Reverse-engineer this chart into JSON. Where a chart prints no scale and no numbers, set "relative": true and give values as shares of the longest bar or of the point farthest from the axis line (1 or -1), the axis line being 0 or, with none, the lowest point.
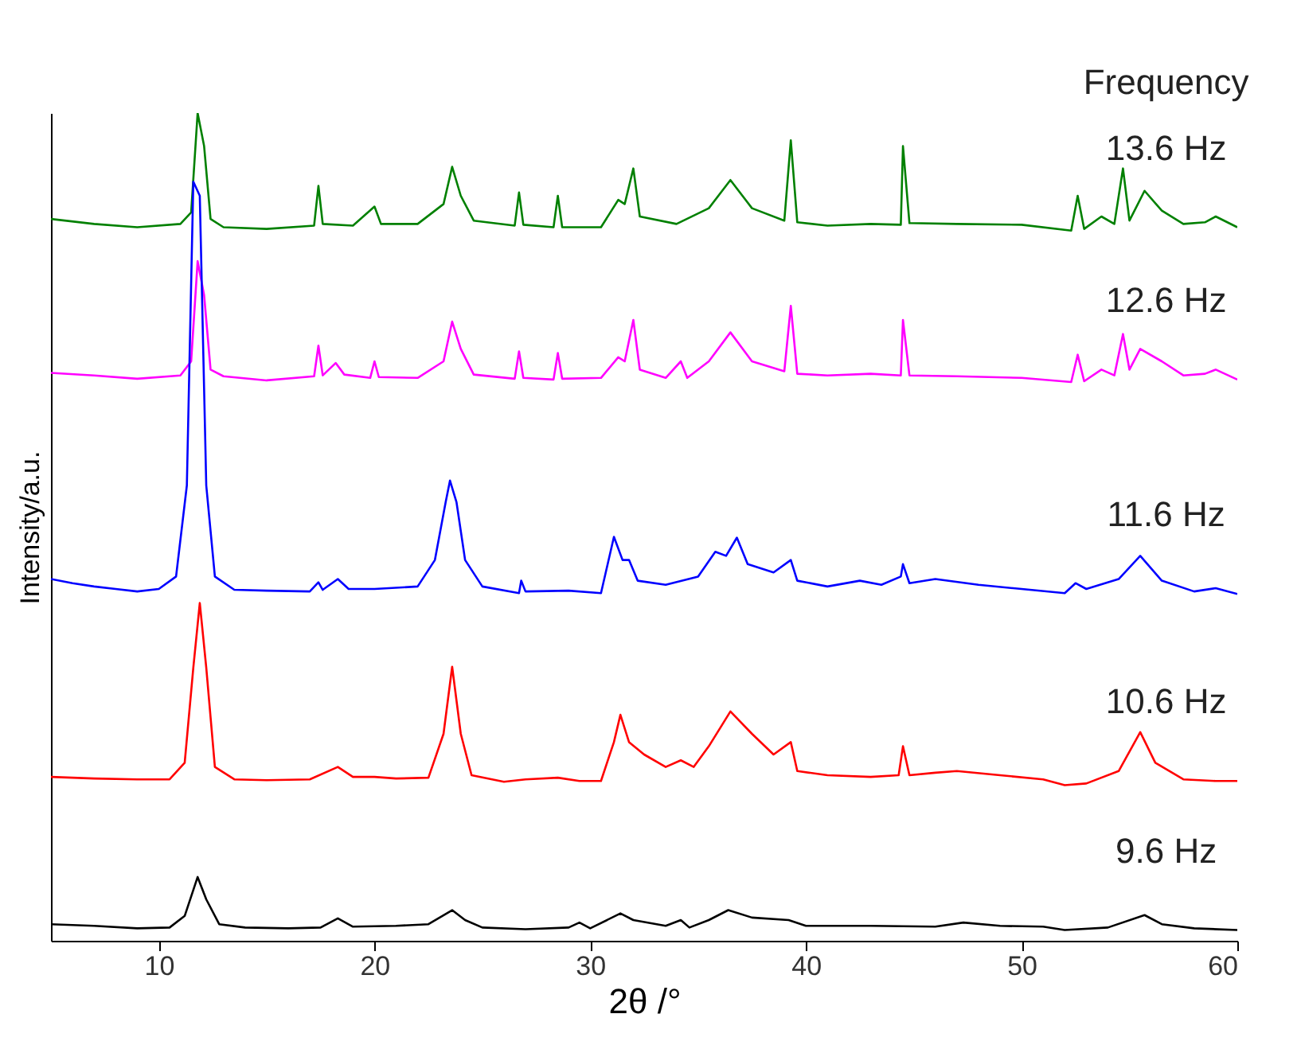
{
  "chart_data": {
    "type": "line",
    "relative": true,
    "xlabel": "2θ /°",
    "ylabel": "Intensity/a.u.",
    "legend_title": "Frequency",
    "legend": false,
    "grid": false,
    "xlim": [
      5,
      60
    ],
    "xticks": [
      10,
      20,
      30,
      40,
      50,
      60
    ],
    "series": [
      {
        "name": "13.6 Hz",
        "color": "#008000",
        "x": [
          5,
          7,
          9,
          11,
          11.5,
          11.8,
          12.1,
          12.4,
          13,
          15,
          17.2,
          17.4,
          17.6,
          19,
          20,
          20.3,
          22,
          23.2,
          23.6,
          24,
          24.6,
          26.5,
          26.7,
          26.9,
          28.3,
          28.5,
          28.7,
          30.5,
          31.3,
          31.6,
          32,
          32.3,
          34,
          35.5,
          36.5,
          37.5,
          39,
          39.3,
          39.6,
          41,
          43,
          44.4,
          44.5,
          44.8,
          47,
          50,
          52.3,
          52.6,
          52.9,
          53.7,
          54.3,
          54.7,
          55,
          55.7,
          56.5,
          57.5,
          58.5,
          59,
          60
        ],
        "values": [
          0.872,
          0.866,
          0.862,
          0.866,
          0.88,
          1.0,
          0.96,
          0.872,
          0.862,
          0.86,
          0.864,
          0.912,
          0.866,
          0.864,
          0.887,
          0.866,
          0.866,
          0.89,
          0.935,
          0.9,
          0.87,
          0.864,
          0.904,
          0.865,
          0.862,
          0.9,
          0.862,
          0.862,
          0.895,
          0.89,
          0.933,
          0.875,
          0.866,
          0.885,
          0.919,
          0.885,
          0.87,
          0.967,
          0.868,
          0.864,
          0.866,
          0.865,
          0.96,
          0.867,
          0.866,
          0.865,
          0.858,
          0.9,
          0.86,
          0.875,
          0.866,
          0.933,
          0.87,
          0.906,
          0.882,
          0.866,
          0.868,
          0.875,
          0.862
        ]
      },
      {
        "name": "12.6 Hz",
        "color": "#ff00ff",
        "x": [
          5,
          7,
          9,
          11,
          11.5,
          11.8,
          12.1,
          12.4,
          13,
          15,
          17.2,
          17.4,
          17.6,
          18.2,
          18.6,
          19.8,
          20,
          20.2,
          22,
          23.2,
          23.6,
          24,
          24.6,
          26.5,
          26.7,
          26.9,
          28.3,
          28.5,
          28.7,
          30.5,
          31.3,
          31.6,
          32,
          32.3,
          33.5,
          34.2,
          34.5,
          35.5,
          36.5,
          37.5,
          39,
          39.3,
          39.6,
          41,
          43,
          44.4,
          44.5,
          44.8,
          47,
          50,
          52.3,
          52.6,
          52.9,
          53.7,
          54.3,
          54.7,
          55,
          55.5,
          56.5,
          57.5,
          58.5,
          59,
          60
        ],
        "values": [
          0.686,
          0.683,
          0.679,
          0.683,
          0.7,
          0.821,
          0.78,
          0.69,
          0.682,
          0.677,
          0.682,
          0.719,
          0.683,
          0.698,
          0.684,
          0.68,
          0.7,
          0.681,
          0.68,
          0.7,
          0.748,
          0.715,
          0.684,
          0.679,
          0.712,
          0.68,
          0.678,
          0.71,
          0.679,
          0.68,
          0.705,
          0.7,
          0.75,
          0.69,
          0.68,
          0.7,
          0.68,
          0.7,
          0.735,
          0.7,
          0.688,
          0.767,
          0.685,
          0.683,
          0.685,
          0.683,
          0.75,
          0.683,
          0.682,
          0.68,
          0.675,
          0.708,
          0.676,
          0.69,
          0.683,
          0.733,
          0.69,
          0.715,
          0.7,
          0.683,
          0.685,
          0.69,
          0.678
        ]
      },
      {
        "name": "11.6 Hz",
        "color": "#0000ff",
        "x": [
          5,
          6,
          7,
          8,
          9,
          10,
          10.8,
          11.3,
          11.6,
          11.9,
          12.2,
          12.6,
          13.5,
          15,
          17,
          17.4,
          17.6,
          18.3,
          18.8,
          20,
          22,
          22.8,
          23.3,
          23.5,
          23.8,
          24.2,
          25,
          26.7,
          26.8,
          27,
          29,
          30.5,
          31.1,
          31.5,
          31.8,
          32.2,
          33.5,
          35,
          35.8,
          36.3,
          36.8,
          37.3,
          38.5,
          39.3,
          39.6,
          41,
          42.5,
          43.5,
          44.4,
          44.5,
          44.8,
          46,
          48,
          50,
          52,
          52.5,
          53,
          54.5,
          55.5,
          56.5,
          58,
          59,
          60
        ],
        "values": [
          0.437,
          0.432,
          0.428,
          0.425,
          0.422,
          0.425,
          0.44,
          0.55,
          0.917,
          0.9,
          0.55,
          0.44,
          0.424,
          0.423,
          0.422,
          0.433,
          0.424,
          0.437,
          0.425,
          0.425,
          0.428,
          0.46,
          0.53,
          0.556,
          0.53,
          0.46,
          0.428,
          0.42,
          0.435,
          0.422,
          0.423,
          0.42,
          0.488,
          0.46,
          0.46,
          0.435,
          0.43,
          0.44,
          0.47,
          0.465,
          0.487,
          0.455,
          0.445,
          0.46,
          0.435,
          0.428,
          0.435,
          0.43,
          0.44,
          0.455,
          0.432,
          0.437,
          0.43,
          0.425,
          0.42,
          0.432,
          0.425,
          0.437,
          0.465,
          0.435,
          0.422,
          0.426,
          0.419
        ]
      },
      {
        "name": "10.6 Hz",
        "color": "#ff0000",
        "x": [
          5,
          7,
          9,
          10.5,
          11.2,
          11.6,
          11.9,
          12.2,
          12.6,
          13.5,
          15,
          17,
          18.3,
          19,
          20,
          21,
          22.5,
          23.2,
          23.6,
          24,
          24.5,
          26,
          27,
          28.5,
          29.5,
          30.5,
          31.1,
          31.4,
          31.8,
          32.5,
          33.5,
          34.2,
          34.8,
          35.5,
          36.5,
          37.5,
          38.5,
          39.3,
          39.6,
          41,
          43,
          44.3,
          44.5,
          44.8,
          46,
          47,
          49,
          51,
          52,
          53,
          54.5,
          55.5,
          56.2,
          57.5,
          59,
          60
        ],
        "values": [
          0.198,
          0.196,
          0.195,
          0.195,
          0.215,
          0.33,
          0.408,
          0.33,
          0.21,
          0.195,
          0.194,
          0.195,
          0.21,
          0.198,
          0.198,
          0.196,
          0.197,
          0.25,
          0.331,
          0.25,
          0.2,
          0.192,
          0.195,
          0.197,
          0.193,
          0.193,
          0.24,
          0.273,
          0.24,
          0.225,
          0.21,
          0.218,
          0.21,
          0.235,
          0.277,
          0.25,
          0.225,
          0.24,
          0.205,
          0.2,
          0.198,
          0.2,
          0.235,
          0.2,
          0.203,
          0.205,
          0.2,
          0.195,
          0.188,
          0.19,
          0.205,
          0.252,
          0.215,
          0.195,
          0.193,
          0.193
        ]
      },
      {
        "name": "9.6 Hz",
        "color": "#000000",
        "x": [
          5,
          7,
          9,
          10.5,
          11.2,
          11.8,
          12.2,
          12.8,
          14,
          16,
          17.5,
          18.3,
          19,
          21,
          22.5,
          23.6,
          24.2,
          25,
          27,
          29,
          29.5,
          30,
          31.4,
          32,
          33.5,
          34.2,
          34.6,
          35.5,
          36.4,
          37.5,
          39.2,
          40,
          43,
          46,
          47.3,
          49,
          51,
          52,
          54,
          55.7,
          56.5,
          58,
          60
        ],
        "values": [
          0.02,
          0.018,
          0.015,
          0.016,
          0.03,
          0.077,
          0.05,
          0.02,
          0.016,
          0.015,
          0.016,
          0.027,
          0.017,
          0.018,
          0.02,
          0.037,
          0.025,
          0.016,
          0.014,
          0.016,
          0.022,
          0.015,
          0.033,
          0.025,
          0.018,
          0.025,
          0.016,
          0.025,
          0.037,
          0.028,
          0.025,
          0.018,
          0.018,
          0.017,
          0.022,
          0.018,
          0.017,
          0.013,
          0.016,
          0.031,
          0.02,
          0.015,
          0.013
        ]
      }
    ]
  }
}
